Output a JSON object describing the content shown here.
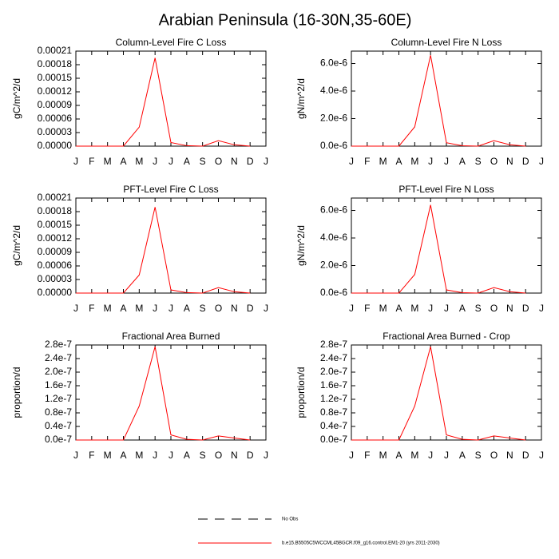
{
  "title": "Arabian Peninsula (16-30N,35-60E)",
  "chart_data": [
    {
      "type": "line",
      "title": "Column-Level Fire C Loss",
      "ylabel": "gC/m^2/d",
      "categories": [
        "J",
        "F",
        "M",
        "A",
        "M",
        "J",
        "J",
        "A",
        "S",
        "O",
        "N",
        "D",
        "J"
      ],
      "values": [
        0,
        0,
        0,
        0,
        4.2e-05,
        0.000195,
        8e-06,
        1e-06,
        0,
        1.2e-05,
        3e-06,
        0,
        null
      ],
      "color": "#ff0000",
      "ylim": [
        0,
        0.00021
      ],
      "yticks": [
        {
          "value": 0,
          "label": "0.00000"
        },
        {
          "value": 3e-05,
          "label": "0.00003"
        },
        {
          "value": 6e-05,
          "label": "0.00006"
        },
        {
          "value": 9e-05,
          "label": "0.00009"
        },
        {
          "value": 0.00012,
          "label": "0.00012"
        },
        {
          "value": 0.00015,
          "label": "0.00015"
        },
        {
          "value": 0.00018,
          "label": "0.00018"
        },
        {
          "value": 0.00021,
          "label": "0.00021"
        }
      ]
    },
    {
      "type": "line",
      "title": "Column-Level Fire N Loss",
      "ylabel": "gN/m^2/d",
      "categories": [
        "J",
        "F",
        "M",
        "A",
        "M",
        "J",
        "J",
        "A",
        "S",
        "O",
        "N",
        "D",
        "J"
      ],
      "values": [
        0,
        0,
        0,
        0,
        1.4e-06,
        6.6e-06,
        2.5e-07,
        3e-08,
        0,
        4e-07,
        1e-07,
        0,
        null
      ],
      "color": "#ff0000",
      "ylim": [
        0,
        6.9e-06
      ],
      "yticks": [
        {
          "value": 0,
          "label": "0.0e-6"
        },
        {
          "value": 2e-06,
          "label": "2.0e-6"
        },
        {
          "value": 4e-06,
          "label": "4.0e-6"
        },
        {
          "value": 6e-06,
          "label": "6.0e-6"
        }
      ]
    },
    {
      "type": "line",
      "title": "PFT-Level Fire C Loss",
      "ylabel": "gC/m^2/d",
      "categories": [
        "J",
        "F",
        "M",
        "A",
        "M",
        "J",
        "J",
        "A",
        "S",
        "O",
        "N",
        "D",
        "J"
      ],
      "values": [
        0,
        0,
        0,
        0,
        4e-05,
        0.00019,
        7e-06,
        1e-06,
        0,
        1.2e-05,
        3e-06,
        0,
        null
      ],
      "color": "#ff0000",
      "ylim": [
        0,
        0.00021
      ],
      "yticks": [
        {
          "value": 0,
          "label": "0.00000"
        },
        {
          "value": 3e-05,
          "label": "0.00003"
        },
        {
          "value": 6e-05,
          "label": "0.00006"
        },
        {
          "value": 9e-05,
          "label": "0.00009"
        },
        {
          "value": 0.00012,
          "label": "0.00012"
        },
        {
          "value": 0.00015,
          "label": "0.00015"
        },
        {
          "value": 0.00018,
          "label": "0.00018"
        },
        {
          "value": 0.00021,
          "label": "0.00021"
        }
      ]
    },
    {
      "type": "line",
      "title": "PFT-Level Fire N Loss",
      "ylabel": "gN/m^2/d",
      "categories": [
        "J",
        "F",
        "M",
        "A",
        "M",
        "J",
        "J",
        "A",
        "S",
        "O",
        "N",
        "D",
        "J"
      ],
      "values": [
        0,
        0,
        0,
        0,
        1.35e-06,
        6.4e-06,
        2.3e-07,
        3e-08,
        0,
        4e-07,
        1e-07,
        0,
        null
      ],
      "color": "#ff0000",
      "ylim": [
        0,
        6.9e-06
      ],
      "yticks": [
        {
          "value": 0,
          "label": "0.0e-6"
        },
        {
          "value": 2e-06,
          "label": "2.0e-6"
        },
        {
          "value": 4e-06,
          "label": "4.0e-6"
        },
        {
          "value": 6e-06,
          "label": "6.0e-6"
        }
      ]
    },
    {
      "type": "line",
      "title": "Fractional Area Burned",
      "ylabel": "proportion/d",
      "categories": [
        "J",
        "F",
        "M",
        "A",
        "M",
        "J",
        "J",
        "A",
        "S",
        "O",
        "N",
        "D",
        "J"
      ],
      "values": [
        0,
        0,
        0,
        0,
        1e-07,
        2.75e-07,
        1.5e-08,
        2e-09,
        0,
        1.2e-08,
        6e-09,
        0,
        null
      ],
      "color": "#ff0000",
      "ylim": [
        0,
        2.8e-07
      ],
      "yticks": [
        {
          "value": 0,
          "label": "0.0e-7"
        },
        {
          "value": 4e-08,
          "label": "0.4e-7"
        },
        {
          "value": 8e-08,
          "label": "0.8e-7"
        },
        {
          "value": 1.2e-07,
          "label": "1.2e-7"
        },
        {
          "value": 1.6e-07,
          "label": "1.6e-7"
        },
        {
          "value": 2e-07,
          "label": "2.0e-7"
        },
        {
          "value": 2.4e-07,
          "label": "2.4e-7"
        },
        {
          "value": 2.8e-07,
          "label": "2.8e-7"
        }
      ]
    },
    {
      "type": "line",
      "title": "Fractional Area Burned - Crop",
      "ylabel": "proportion/d",
      "categories": [
        "J",
        "F",
        "M",
        "A",
        "M",
        "J",
        "J",
        "A",
        "S",
        "O",
        "N",
        "D",
        "J"
      ],
      "values": [
        0,
        0,
        0,
        0,
        1e-07,
        2.75e-07,
        1.5e-08,
        2e-09,
        0,
        1.2e-08,
        6e-09,
        0,
        null
      ],
      "color": "#ff0000",
      "ylim": [
        0,
        2.8e-07
      ],
      "yticks": [
        {
          "value": 0,
          "label": "0.0e-7"
        },
        {
          "value": 4e-08,
          "label": "0.4e-7"
        },
        {
          "value": 8e-08,
          "label": "0.8e-7"
        },
        {
          "value": 1.2e-07,
          "label": "1.2e-7"
        },
        {
          "value": 1.6e-07,
          "label": "1.6e-7"
        },
        {
          "value": 2e-07,
          "label": "2.0e-7"
        },
        {
          "value": 2.4e-07,
          "label": "2.4e-7"
        },
        {
          "value": 2.8e-07,
          "label": "2.8e-7"
        }
      ]
    }
  ],
  "legend": [
    {
      "name": "No Obs",
      "color": "#000000",
      "dash": true
    },
    {
      "name": "b.e15.B5505C5WCCML45BGCR.f09_g16.control.EM1-20 (yrs 2011-2030)",
      "color": "#ff0000",
      "dash": false
    }
  ]
}
